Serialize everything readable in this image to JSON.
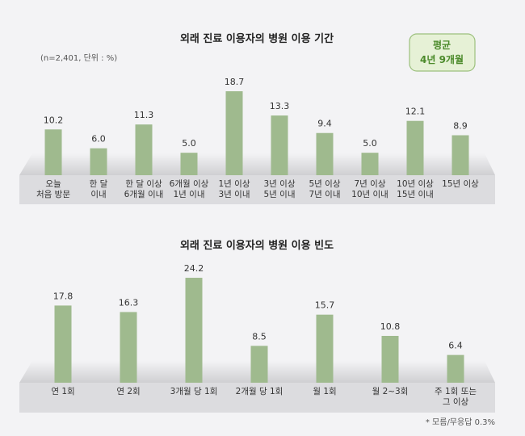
{
  "chart_data": [
    {
      "type": "bar",
      "title": "외래 진료 이용자의 병원 이용 기간",
      "subtitle": "(n=2,401, 단위 : %)",
      "callout": {
        "line1": "평균",
        "line2": "4년 9개월"
      },
      "categories": [
        [
          "오늘",
          "처음 방문"
        ],
        [
          "한 달",
          "이내"
        ],
        [
          "한 달 이상",
          "6개월 이내"
        ],
        [
          "6개월 이상",
          "1년 이내"
        ],
        [
          "1년 이상",
          "3년 이내"
        ],
        [
          "3년 이상",
          "5년 이내"
        ],
        [
          "5년 이상",
          "7년 이내"
        ],
        [
          "7년 이상",
          "10년 이내"
        ],
        [
          "10년 이상",
          "15년 이내"
        ],
        [
          "15년 이상"
        ]
      ],
      "values": [
        10.2,
        6.0,
        11.3,
        5.0,
        18.7,
        13.3,
        9.4,
        5.0,
        12.1,
        8.9
      ],
      "bar_color": "#9fba8e"
    },
    {
      "type": "bar",
      "title": "외래 진료 이용자의 병원 이용 빈도",
      "categories": [
        [
          "연 1회"
        ],
        [
          "연 2회"
        ],
        [
          "3개월 당 1회"
        ],
        [
          "2개월 당 1회"
        ],
        [
          "월 1회"
        ],
        [
          "월 2~3회"
        ],
        [
          "주 1회 또는",
          "그 이상"
        ]
      ],
      "values": [
        17.8,
        16.3,
        24.2,
        8.5,
        15.7,
        10.8,
        6.4
      ],
      "note": "* 모름/무응답 0.3%",
      "bar_color": "#9fba8e"
    }
  ]
}
